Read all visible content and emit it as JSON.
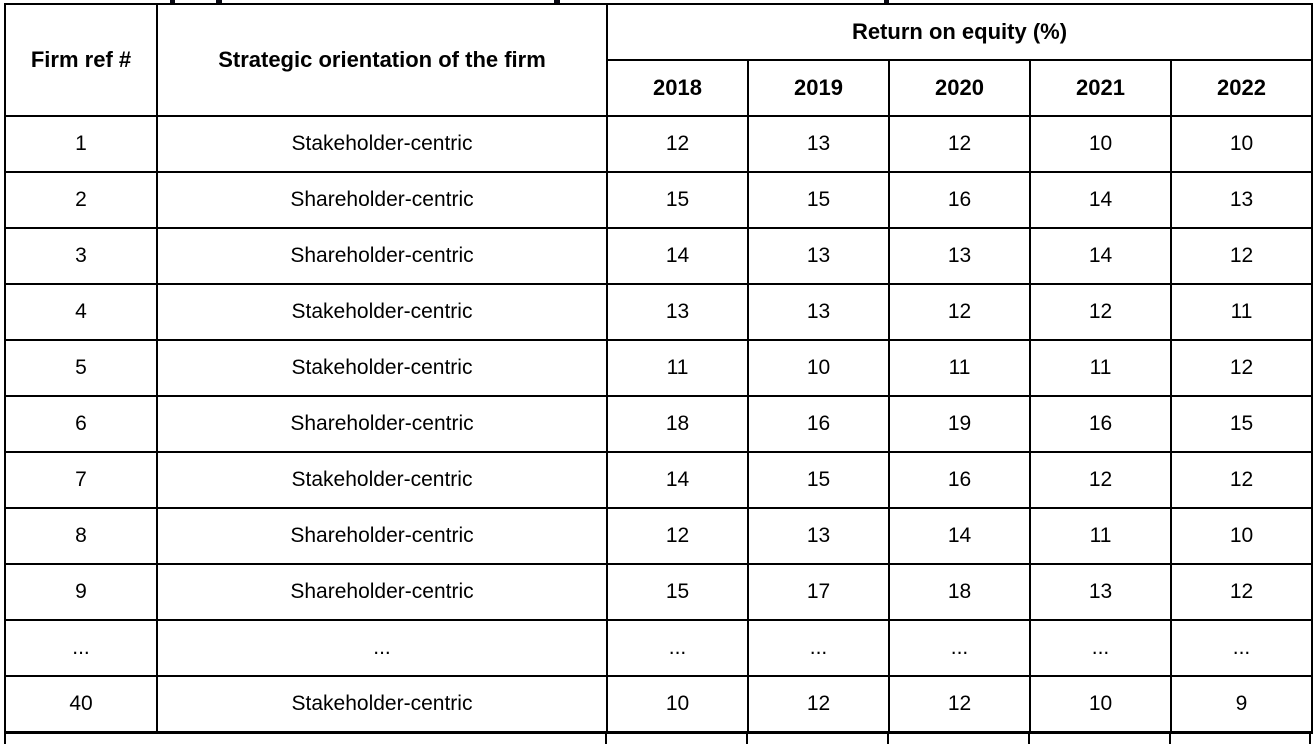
{
  "colors": {
    "background": "#ffffff",
    "border": "#000000",
    "text": "#000000"
  },
  "table": {
    "headers": {
      "firm_ref": "Firm ref #",
      "orientation": "Strategic orientation of the firm",
      "roe_group": "Return on equity (%)",
      "years": [
        "2018",
        "2019",
        "2020",
        "2021",
        "2022"
      ]
    },
    "rows": [
      {
        "firm": "1",
        "orientation": "Stakeholder-centric",
        "values": [
          "12",
          "13",
          "12",
          "10",
          "10"
        ]
      },
      {
        "firm": "2",
        "orientation": "Shareholder-centric",
        "values": [
          "15",
          "15",
          "16",
          "14",
          "13"
        ]
      },
      {
        "firm": "3",
        "orientation": "Shareholder-centric",
        "values": [
          "14",
          "13",
          "13",
          "14",
          "12"
        ]
      },
      {
        "firm": "4",
        "orientation": "Stakeholder-centric",
        "values": [
          "13",
          "13",
          "12",
          "12",
          "11"
        ]
      },
      {
        "firm": "5",
        "orientation": "Stakeholder-centric",
        "values": [
          "11",
          "10",
          "11",
          "11",
          "12"
        ]
      },
      {
        "firm": "6",
        "orientation": "Shareholder-centric",
        "values": [
          "18",
          "16",
          "19",
          "16",
          "15"
        ]
      },
      {
        "firm": "7",
        "orientation": "Stakeholder-centric",
        "values": [
          "14",
          "15",
          "16",
          "12",
          "12"
        ]
      },
      {
        "firm": "8",
        "orientation": "Shareholder-centric",
        "values": [
          "12",
          "13",
          "14",
          "11",
          "10"
        ]
      },
      {
        "firm": "9",
        "orientation": "Shareholder-centric",
        "values": [
          "15",
          "17",
          "18",
          "13",
          "12"
        ]
      },
      {
        "firm": "...",
        "orientation": "...",
        "values": [
          "...",
          "...",
          "...",
          "...",
          "..."
        ]
      },
      {
        "firm": "40",
        "orientation": "Stakeholder-centric",
        "values": [
          "10",
          "12",
          "12",
          "10",
          "9"
        ]
      }
    ]
  }
}
